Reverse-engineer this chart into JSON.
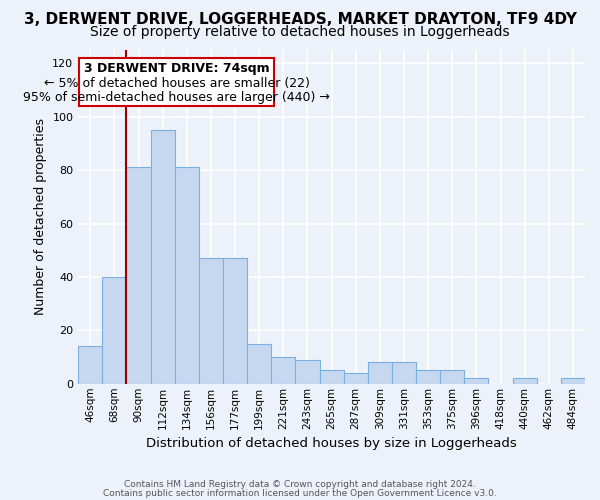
{
  "title_line1": "3, DERWENT DRIVE, LOGGERHEADS, MARKET DRAYTON, TF9 4DY",
  "title_line2": "Size of property relative to detached houses in Loggerheads",
  "xlabel": "Distribution of detached houses by size in Loggerheads",
  "ylabel": "Number of detached properties",
  "categories": [
    "46sqm",
    "68sqm",
    "90sqm",
    "112sqm",
    "134sqm",
    "156sqm",
    "177sqm",
    "199sqm",
    "221sqm",
    "243sqm",
    "265sqm",
    "287sqm",
    "309sqm",
    "331sqm",
    "353sqm",
    "375sqm",
    "396sqm",
    "418sqm",
    "440sqm",
    "462sqm",
    "484sqm"
  ],
  "values": [
    14,
    40,
    81,
    95,
    81,
    47,
    47,
    15,
    10,
    9,
    5,
    4,
    8,
    8,
    5,
    5,
    2,
    0,
    2,
    0,
    2
  ],
  "bar_color": "#c5d8f0",
  "bar_edge_color": "#7aafe0",
  "red_line_x": 1.5,
  "annotation_text_line1": "3 DERWENT DRIVE: 74sqm",
  "annotation_text_line2": "← 5% of detached houses are smaller (22)",
  "annotation_text_line3": "95% of semi-detached houses are larger (440) →",
  "footer_line1": "Contains HM Land Registry data © Crown copyright and database right 2024.",
  "footer_line2": "Contains public sector information licensed under the Open Government Licence v3.0.",
  "ylim": [
    0,
    125
  ],
  "yticks": [
    0,
    20,
    40,
    60,
    80,
    100,
    120
  ],
  "background_color": "#edf2fa",
  "plot_bg_color": "#edf2fa",
  "grid_color": "#ffffff",
  "title_fontsize": 11,
  "subtitle_fontsize": 10,
  "annotation_fontsize": 9,
  "ylabel_fontsize": 9,
  "xlabel_fontsize": 9.5
}
